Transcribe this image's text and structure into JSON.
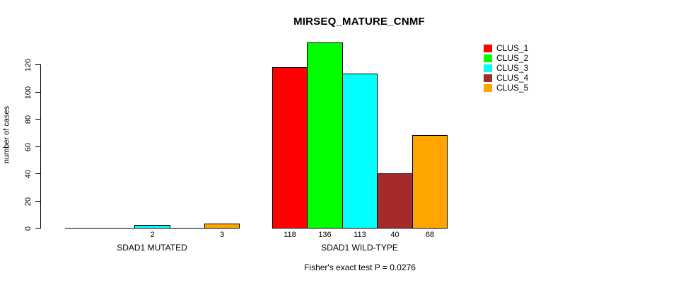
{
  "figure": {
    "background": "#ffffff",
    "foreground": "#000000"
  },
  "chart_data": {
    "type": "bar",
    "title": "MIRSEQ_MATURE_CNMF",
    "xlabel": "",
    "ylabel": "number of cases",
    "ylim": [
      0,
      120
    ],
    "yticks": [
      0,
      20,
      40,
      60,
      80,
      100,
      120
    ],
    "grid": false,
    "legend_position": "top-right",
    "bar_value_labels": "shown under each non-zero bar",
    "categories": [
      "SDAD1 MUTATED",
      "SDAD1 WILD-TYPE"
    ],
    "series": [
      {
        "name": "CLUS_1",
        "color": "#FF0000",
        "values": [
          0,
          118
        ]
      },
      {
        "name": "CLUS_2",
        "color": "#00FF00",
        "values": [
          0,
          136
        ]
      },
      {
        "name": "CLUS_3",
        "color": "#00FFFF",
        "values": [
          2,
          113
        ]
      },
      {
        "name": "CLUS_4",
        "color": "#A52A2A",
        "values": [
          0,
          40
        ]
      },
      {
        "name": "CLUS_5",
        "color": "#FFA500",
        "values": [
          3,
          68
        ]
      }
    ],
    "annotation": "Fisher's exact test P = 0.0276"
  }
}
